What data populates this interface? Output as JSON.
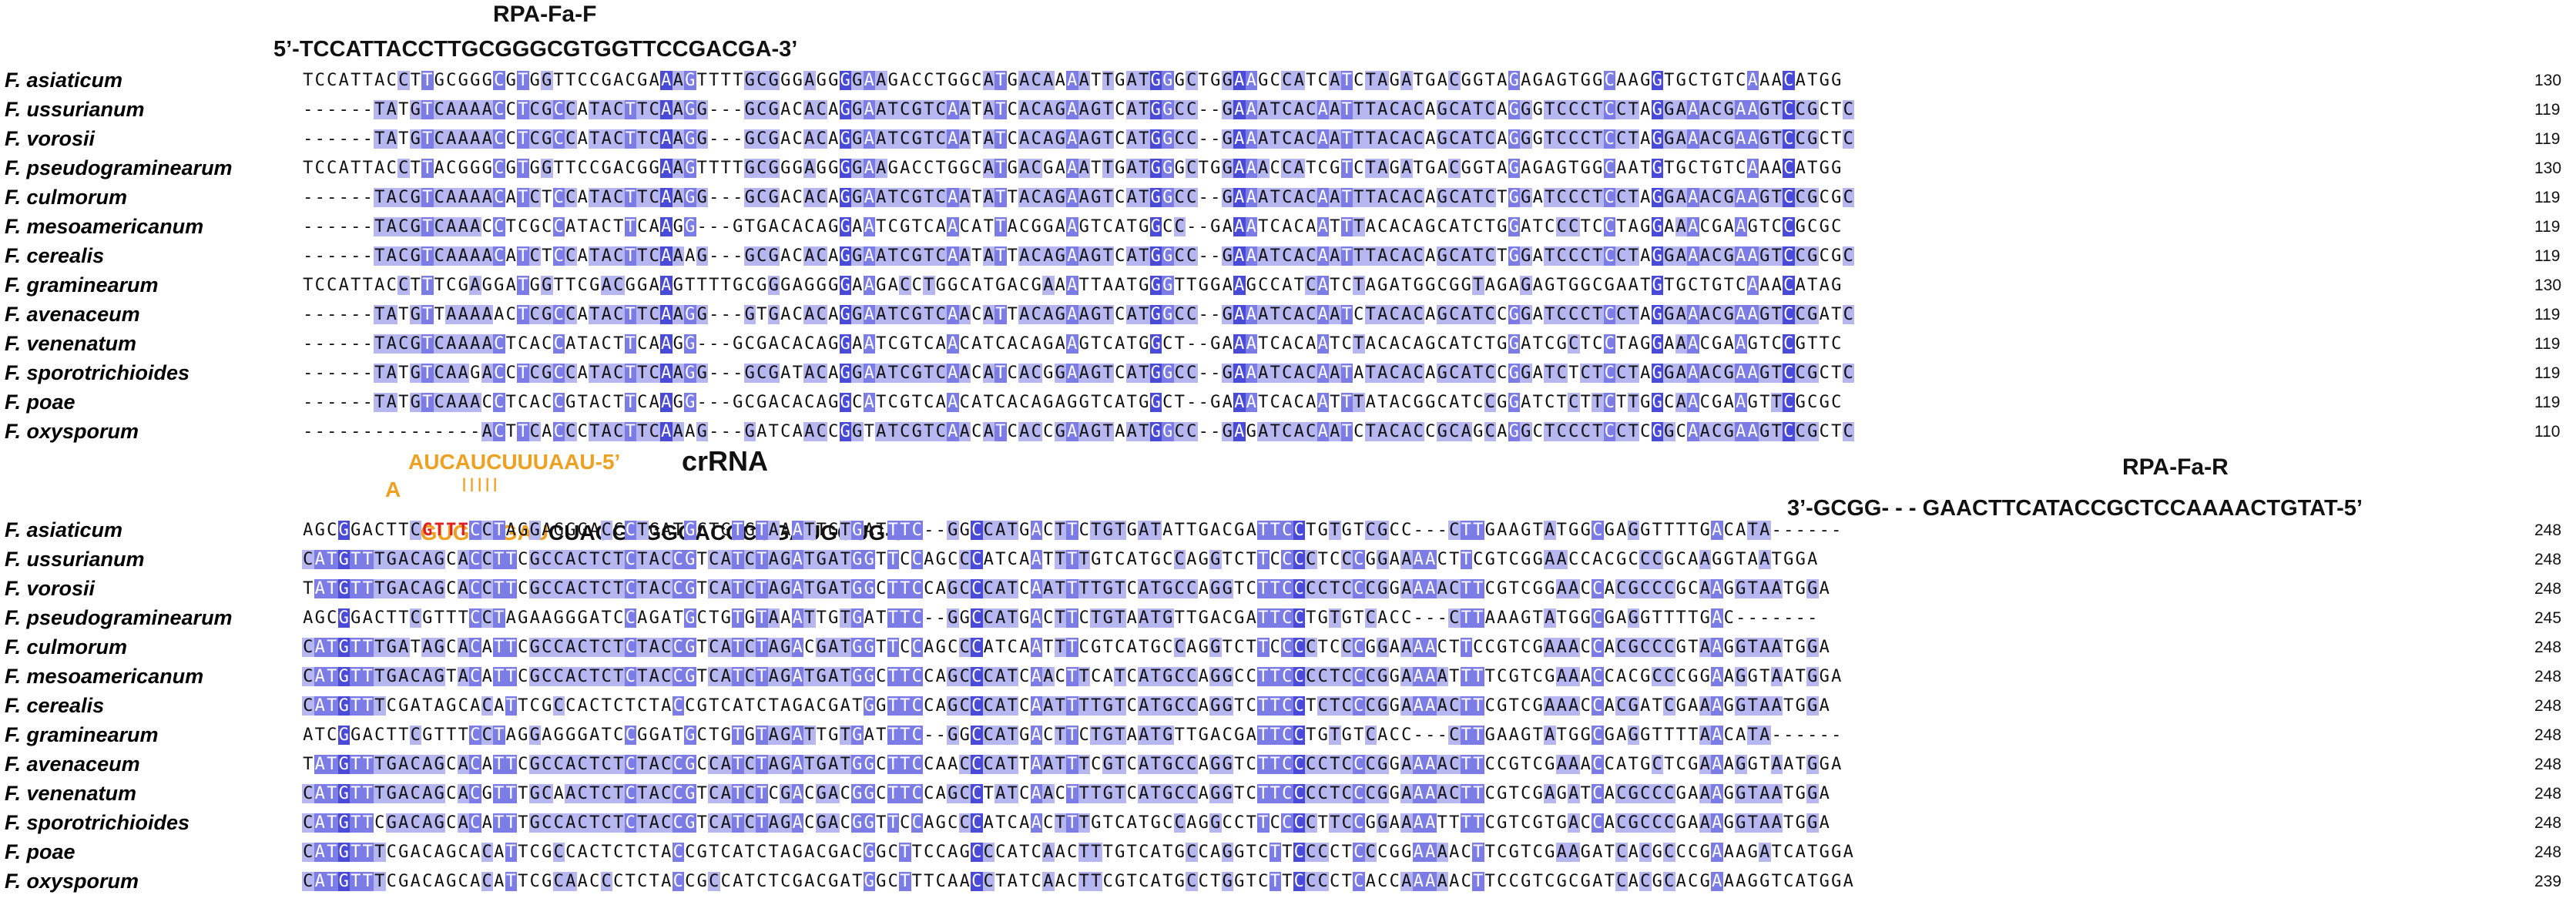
{
  "block1": {
    "primer_name": "RPA-Fa-F",
    "primer_seq": "5’-TCCATTACCTTGCGGGCGTGGTTCCGACGA-3’",
    "rows": [
      {
        "name": "F. asiaticum",
        "seq": "TCCATTACCTTGCGGGCGTGGTTCCGACGAAAGTTTTGCGGGAGGGGAAGACCTGGCATGACAAAATTGATGGGCTGGAAGCCATCATCTAGATGACGGTAGAGAGTGGCAAGGTGCTGTCAAACATGG",
        "num": "130"
      },
      {
        "name": "F. ussurianum",
        "seq": "------TATGTCAAAACCTCGCCATACTTCAAGG---GCGACACAGGAATCGTCAATATCACAGAAGTCATGGCC--GAAATCACAATTTACACAGCATCAGGGTCCCTCCTAGGAAACGAAGTCCGCTC",
        "num": "119"
      },
      {
        "name": "F. vorosii",
        "seq": "------TATGTCAAAACCTCGCCATACTTCAAGG---GCGACACAGGAATCGTCAATATCACAGAAGTCATGGCC--GAAATCACAATTTACACAGCATCAGGGTCCCTCCTAGGAAACGAAGTCCGCTC",
        "num": "119"
      },
      {
        "name": "F. pseudograminearum",
        "seq": "TCCATTACCTTACGGGCGTGGTTCCGACGGAAGTTTTGCGGGAGGGGAAGACCTGGCATGACGAAATTGATGGGCTGGAAACCATCGTCTAGATGACGGTAGAGAGTGGCAATGTGCTGTCAAACATGG",
        "num": "130"
      },
      {
        "name": "F. culmorum",
        "seq": "------TACGTCAAAACATCTCCATACTTCAAGG---GCGACACAGGAATCGTCAATATTACAGAAGTCATGGCC--GAAATCACAATTTACACAGCATCTGGATCCCTCCTAGGAAACGAAGTCCGCGC",
        "num": "119"
      },
      {
        "name": "F. mesoamericanum",
        "seq": "------TACGTCAAACCTCGCCATACTTCAAGG---GTGACACAGGAATCGTCAACATTACGGAAGTCATGGCC--GAAATCACAATTTACACAGCATCTGGATCCCTCCTAGGAAACGAAGTCCGCGC",
        "num": "119"
      },
      {
        "name": "F. cerealis",
        "seq": "------TACGTCAAAACATCTCCATACTTCAAAG---GCGACACAGGAATCGTCAATATTACAGAAGTCATGGCC--GAAATCACAATTTACACAGCATCTGGATCCCTCCTAGGAAACGAAGTCCGCGC",
        "num": "119"
      },
      {
        "name": "F. graminearum",
        "seq": "TCCATTACCTTTCGAGGATGGTTCGACGGAAGTTTTGCGGGAGGGGAAGACCTGGCATGACGAAATTAATGGGTTGGAAGCCATCATCTAGATGGCGGTAGAGAGTGGCGAATGTGCTGTCAAACATAG",
        "num": "130"
      },
      {
        "name": "F. avenaceum",
        "seq": "------TATGTTAAAAACTCGCCATACTTCAAGG---GTGACACAGGAATCGTCAACATTACAGAAGTCATGGCC--GAAATCACAATCTACACAGCATCCGGATCCCTCCTAGGAAACGAAGTCCGATC",
        "num": "119"
      },
      {
        "name": "F. venenatum",
        "seq": "------TACGTCAAAACTCACCATACTTCAAGG---GCGACACAGGAATCGTCAACATCACAGAAGTCATGGCT--GAAATCACAATCTACACAGCATCTGGATCGCTCCTAGGAAACGAAGTCCGTTC",
        "num": "119"
      },
      {
        "name": "F. sporotrichioides",
        "seq": "------TATGTCAAGACCTCGCCATACTTCAAGG---GCGATACAGGAATCGTCAACATCACGGAAGTCATGGCC--GAAATCACAATATACACAGCATCCGGATCTCTCCTAGGAAACGAAGTCCGCTC",
        "num": "119"
      },
      {
        "name": "F. poae",
        "seq": "------TATGTCAAACCTCACCGTACTTCAAGG---GCGACACAGGCATCGTCAACATCACAGAGGTCATGGCT--GAAATCACAATTTATACGGCATCCGGATCTCTTCTTGGCAACGAAGTTCGCGC",
        "num": "119"
      },
      {
        "name": "F. oxysporum",
        "seq": "---------------ACTTCACCCTACTTCAAAG---GATCAACCGGTATCGTCAACATCACCGAAGTAATGGCC--GAGATCACAATCTACACCGCAGCAGGCTCCCTCCTCGGCAACGAAGTCCGCTC",
        "num": "110"
      }
    ]
  },
  "block2": {
    "crrna_label": "crRNA",
    "crrna_top": "AUCAUCUUUAAU-5’",
    "crrna_a": "A",
    "crrna_bars": "| | | | |",
    "crrna_orange": "GUGUAGAU",
    "crrna_black": "CUAGGAGGGACCCUGAUGCUG-3’",
    "rev_name": "RPA-Fa-R",
    "rev_seq": "3’-GCGG- - - GAACTTCATACCGCTCCAAAACTGTAT-5’",
    "rows": [
      {
        "name": "F. asiaticum",
        "seq": "AGCGGACTTCGTTTCCTAGGAGGGACCCTGATGCTGTGTAAATTGTGATTTC--GGCCATGACTTCTGTGATATTGACGATTCCTGTGTCGCC---CTTGAAGTATGGCGAGGTTTTGACATA------",
        "num": "248"
      },
      {
        "name": "F. ussurianum",
        "seq": "CATGTTTGACAGCACCTTCGCCACTCTCTACCGTCATCTAGATGATGGTTCCAGCCCATCAATTTTGTCATGCCAGGTCTTCCCCTCCCGGAAAACTTCGTCGGAACCACGCCCGCAAGGTAATGGA",
        "num": "248"
      },
      {
        "name": "F. vorosii",
        "seq": "TATGTTTGACAGCACCTTCGCCACTCTCTACCGTCATCTAGATGATGGCTTCCAGCCCATCAATTTTGTCATGCCAGGTCTTCCCCTCCCGGAAAACTTCGTCGGAACCACGCCCGCAAGGTAATGGA",
        "num": "248"
      },
      {
        "name": "F. pseudograminearum",
        "seq": "AGCGGACTTCGTTTCCTAGAAGGGATCCAGATGCTGTGTAAATTGTGATTTC--GGCCATGACTTCTGTAATGTTGACGATTCCTGTGTCACC---CTTAAAGTATGGCGAGGTTTTGAC-------",
        "num": "245"
      },
      {
        "name": "F. culmorum",
        "seq": "CATGTTTGATAGCACATTCGCCACTCTCTACCGTCATCTAGACGATGGTTCCAGCCCATCAATTTCGTCATGCCAGGTCTTCCCCTCCCGGAAAACTTCCGTCGAAACCACGCCCGTAAGGTAATGGA",
        "num": "248"
      },
      {
        "name": "F. mesoamericanum",
        "seq": "CATGTTTGACAGTACATTCGCCACTCTCTACCGTCATCTAGATGATGGCTTCCAGCCCATCAACTTCATCATGCCAGGCCTTCCCCTCCCGGAAAATTTTCGTCGAAACCACGCCCGGAAGGTAATGGA",
        "num": "248"
      },
      {
        "name": "F. cerealis",
        "seq": "CATGTTTCGATAGCACATTCGCCACTCTCTACCGTCATCTAGACGATGGTTCCAGCCCATCAATTTTGTCATGCCAGGTCTTCCTCTCCCGGAAAACTTCGTCGAAACCACGATCGAAAGGTAATGGA",
        "num": "248"
      },
      {
        "name": "F. graminearum",
        "seq": "ATCGGACTTCGTTTCCTAGGAGGGATCCGGATGCTGTGTAGATTGTGATTTC--GGCCATGACTTCTGTAATGTTGACGATTCCTGTGTCACC---CTTGAAGTATGGCGAGGTTTTAACATA------",
        "num": "248"
      },
      {
        "name": "F. avenaceum",
        "seq": "TATGTTTGACAGCACATTCGCCACTCTCTACCGCCATCTAGATGATGGCTTCCAACCCATTAATTTCGTCATGCCAGGTCTTCCCCTCCCGGAAAACTTCCGTCGAAACCATGCTCGAAAGGTAATGGA",
        "num": "248"
      },
      {
        "name": "F. venenatum",
        "seq": "CATGTTTGACAGCACGTTTGCAACTCTCTACCGTCATCTCGACGACGGCTTCCAGCCTATCAACTTTGTCATGCCAGGTCTTCCCCTCCCGGAAAACTTCGTCGAGATCACGCCCGAAAGGTAATGGA",
        "num": "248"
      },
      {
        "name": "F. sporotrichioides",
        "seq": "CATGTTCGACAGCACATTTGCCACTCTCTACCGTCATCTAGACGACGGTTCCAGCCCATCAACTTTGTCATGCCAGGCCTTCCCCTTCCGGAAAATTTTCGTCGTGACCACGCCCGAAAGGTAATGGA",
        "num": "248"
      },
      {
        "name": "F. poae",
        "seq": "CATGTTTCGACAGCACATTCGCCACTCTCTACCGTCATCTAGACGACGGCTTCCAGCCCATCAACTTTGTCATGCCAGGTCTTCCCCTCCCGGAAAACTTCGTCGAAGATCACGCCCGAAAGATCATGGA",
        "num": "248"
      },
      {
        "name": "F. oxysporum",
        "seq": "CATGTTTCGACAGCACATTCGCAACCCTCTACCGCCATCTCGACGATGGCTTTCAACCTATCAACTTCGTCATGCCTGGTCTTCCCCTCACCAAAAACTTCCGTCGCGATCACGCACGAAAGGTCATGGA",
        "num": "239"
      }
    ]
  }
}
